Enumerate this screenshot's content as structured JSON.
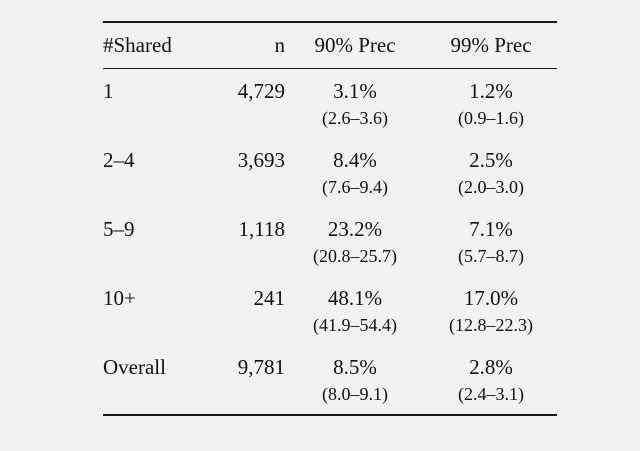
{
  "table": {
    "columns": {
      "shared": "#Shared",
      "n": "n",
      "prec90": "90% Prec",
      "prec99": "99% Prec"
    },
    "rows": [
      {
        "shared": "1",
        "n": "4,729",
        "prec90": "3.1%",
        "prec90_ci": "(2.6–3.6)",
        "prec99": "1.2%",
        "prec99_ci": "(0.9–1.6)"
      },
      {
        "shared": "2–4",
        "n": "3,693",
        "prec90": "8.4%",
        "prec90_ci": "(7.6–9.4)",
        "prec99": "2.5%",
        "prec99_ci": "(2.0–3.0)"
      },
      {
        "shared": "5–9",
        "n": "1,118",
        "prec90": "23.2%",
        "prec90_ci": "(20.8–25.7)",
        "prec99": "7.1%",
        "prec99_ci": "(5.7–8.7)"
      },
      {
        "shared": "10+",
        "n": "241",
        "prec90": "48.1%",
        "prec90_ci": "(41.9–54.4)",
        "prec99": "17.0%",
        "prec99_ci": "(12.8–22.3)"
      },
      {
        "shared": "Overall",
        "n": "9,781",
        "prec90": "8.5%",
        "prec90_ci": "(8.0–9.1)",
        "prec99": "2.8%",
        "prec99_ci": "(2.4–3.1)"
      }
    ],
    "colors": {
      "background": "#f2f2f2",
      "rule": "#1a1a1a",
      "text": "#111111"
    }
  }
}
